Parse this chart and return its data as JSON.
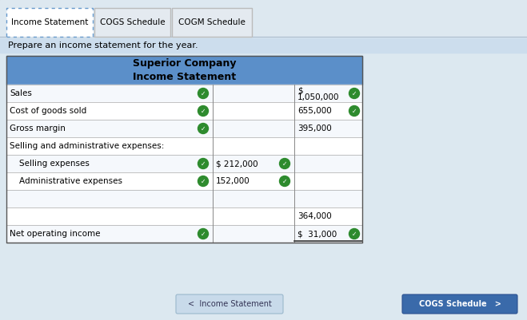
{
  "tab_labels": [
    "Income Statement",
    "COGS Schedule",
    "COGM Schedule"
  ],
  "instruction": "Prepare an income statement for the year.",
  "company_name": "Superior Company",
  "table_title": "Income Statement",
  "header_color": "#5b8fc9",
  "rows": [
    {
      "label": "Sales",
      "col1": "",
      "col2": "$\n1,050,000",
      "check1": true,
      "check2": false,
      "check3": true,
      "indent": 0
    },
    {
      "label": "Cost of goods sold",
      "col1": "",
      "col2": "655,000",
      "check1": true,
      "check2": false,
      "check3": true,
      "indent": 0
    },
    {
      "label": "Gross margin",
      "col1": "",
      "col2": "395,000",
      "check1": true,
      "check2": false,
      "check3": false,
      "indent": 0
    },
    {
      "label": "Selling and administrative expenses:",
      "col1": "",
      "col2": "",
      "check1": false,
      "check2": false,
      "check3": false,
      "indent": 0
    },
    {
      "label": "Selling expenses",
      "col1": "$ 212,000",
      "col2": "",
      "check1": true,
      "check2": true,
      "check3": false,
      "indent": 1
    },
    {
      "label": "Administrative expenses",
      "col1": "152,000",
      "col2": "",
      "check1": true,
      "check2": true,
      "check3": false,
      "indent": 1
    },
    {
      "label": "",
      "col1": "",
      "col2": "",
      "check1": false,
      "check2": false,
      "check3": false,
      "indent": 0
    },
    {
      "label": "",
      "col1": "",
      "col2": "364,000",
      "check1": false,
      "check2": false,
      "check3": false,
      "indent": 0
    },
    {
      "label": "Net operating income",
      "col1": "",
      "col2": "$  31,000",
      "check1": true,
      "check2": false,
      "check3": true,
      "indent": 0
    }
  ],
  "check_color": "#2e8b2e",
  "bg_color": "#dce8f0",
  "top_bar_color": "#c0c8d0",
  "tabs_bg_color": "#dce8f0",
  "instruction_bg": "#ccdded",
  "table_bg_white": "#ffffff",
  "table_bg_light": "#f5f8fc",
  "bottom_btn_left_color": "#c8daea",
  "bottom_btn_right_color": "#3a6aaa",
  "bottom_btn_left_text": "<  Income Statement",
  "bottom_btn_right_text": "COGS Schedule   >"
}
